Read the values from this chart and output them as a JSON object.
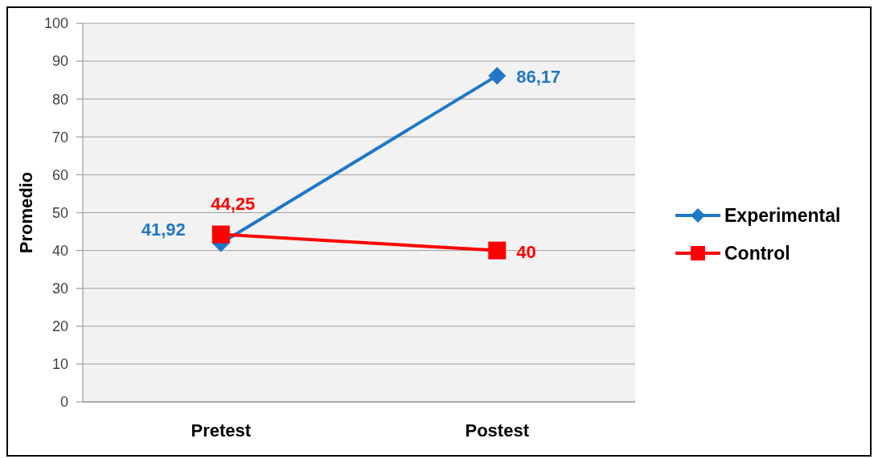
{
  "chart_data": {
    "type": "line",
    "ylabel": "Promedio",
    "categories": [
      "Pretest",
      "Postest"
    ],
    "series": [
      {
        "name": "Experimental",
        "color": "#1f77c8",
        "marker": "diamond",
        "values": [
          41.92,
          86.17
        ],
        "value_labels": [
          "41,92",
          "86,17"
        ]
      },
      {
        "name": "Control",
        "color": "#ff0000",
        "marker": "square",
        "values": [
          44.25,
          40
        ],
        "value_labels": [
          "44,25",
          "40"
        ]
      }
    ],
    "ylim": [
      0,
      100
    ],
    "yticks": [
      0,
      10,
      20,
      30,
      40,
      50,
      60,
      70,
      80,
      90,
      100
    ],
    "grid": "y",
    "legend": "right"
  }
}
